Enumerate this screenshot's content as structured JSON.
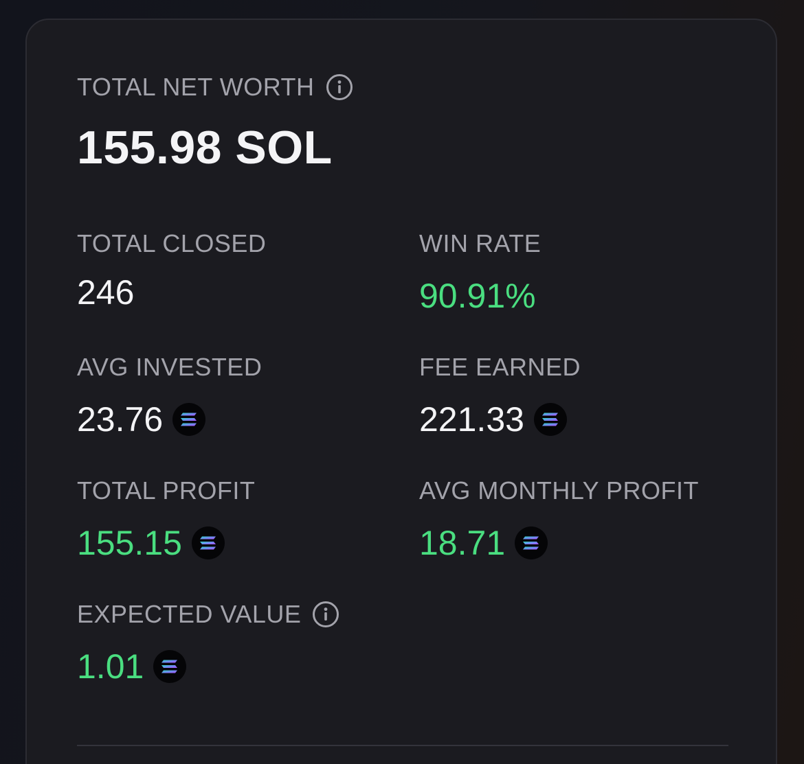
{
  "networth": {
    "label": "TOTAL NET WORTH",
    "value": "155.98 SOL"
  },
  "stats": {
    "total_closed": {
      "label": "TOTAL CLOSED",
      "value": "246"
    },
    "win_rate": {
      "label": "WIN RATE",
      "value": "90.91%"
    },
    "avg_invested": {
      "label": "AVG INVESTED",
      "value": "23.76"
    },
    "fee_earned": {
      "label": "FEE EARNED",
      "value": "221.33"
    },
    "total_profit": {
      "label": "TOTAL PROFIT",
      "value": "155.15"
    },
    "avg_monthly_profit": {
      "label": "AVG MONTHLY PROFIT",
      "value": "18.71"
    },
    "expected_value": {
      "label": "EXPECTED VALUE",
      "value": "1.01"
    }
  },
  "icons": {
    "info": "info-icon",
    "currency": "solana-icon"
  },
  "colors": {
    "positive": "#4ade80",
    "text": "#f4f4f6",
    "label": "#a3a3ab",
    "card_bg": "#1b1b20"
  }
}
